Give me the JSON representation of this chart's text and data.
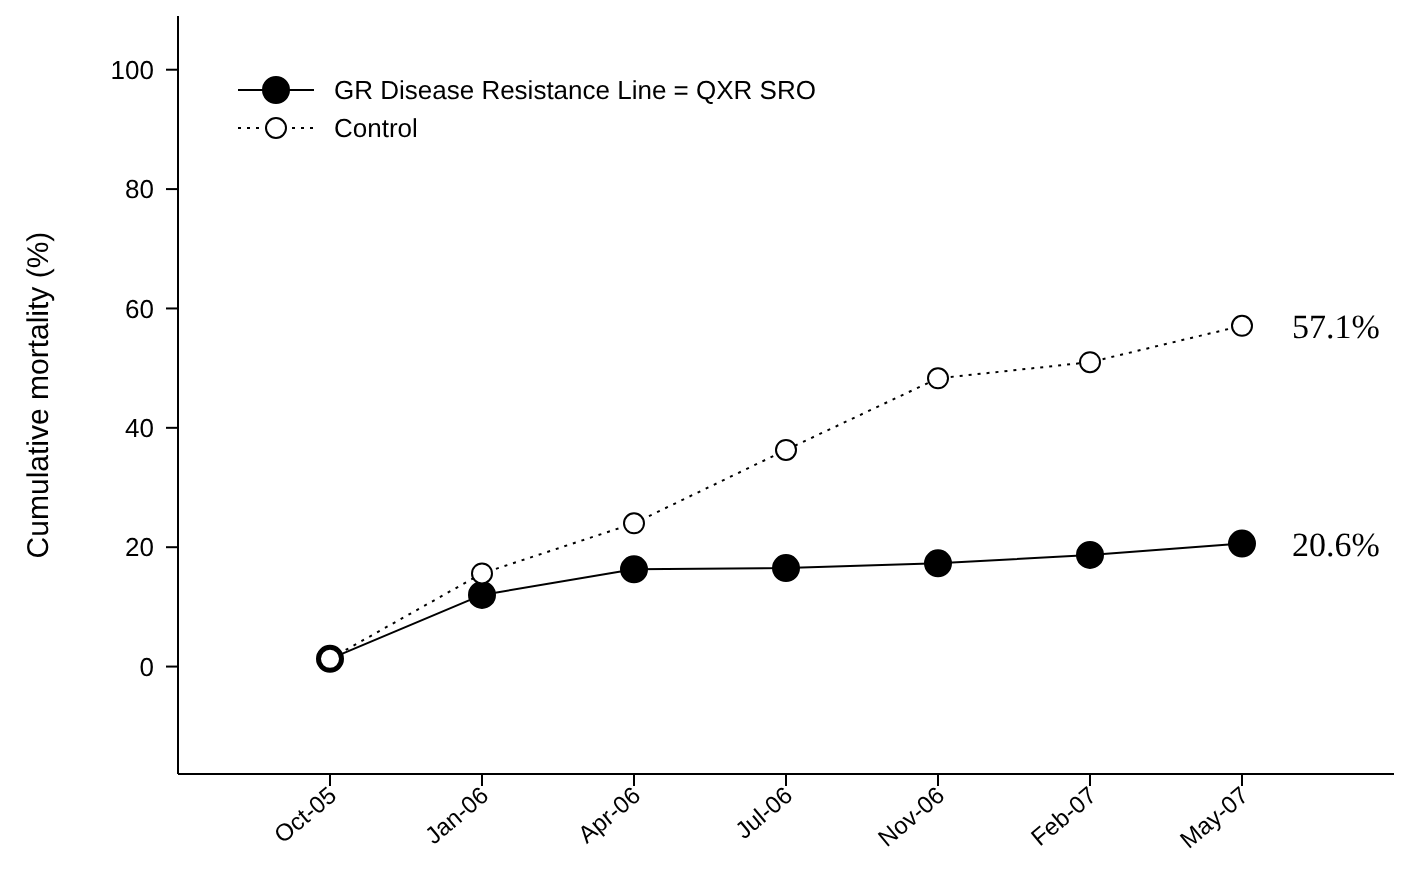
{
  "chart_data": {
    "type": "line",
    "ylabel": "Cumulative mortality (%)",
    "categories": [
      "Oct-05",
      "Jan-06",
      "Apr-06",
      "Jul-06",
      "Nov-06",
      "Feb-07",
      "May-07"
    ],
    "series": [
      {
        "name": "GR Disease Resistance Line = QXR SRO",
        "color": "#000000",
        "line_style": "solid",
        "values": [
          1.3,
          12,
          16.3,
          16.5,
          17.3,
          18.7,
          20.6
        ]
      },
      {
        "name": "Control",
        "color": "#000000",
        "line_style": "dotted",
        "values": [
          1.3,
          15.6,
          24,
          36.3,
          48.3,
          51,
          57.1
        ]
      }
    ],
    "ylim": [
      -18,
      109
    ],
    "yticks": [
      0,
      20,
      40,
      60,
      80,
      100
    ],
    "grid": false,
    "legend": "top left",
    "marker": "circle",
    "annotations": [
      {
        "text": "57.1%",
        "x": "May-07",
        "y": 57.1
      },
      {
        "text": "20.6%",
        "x": "May-07",
        "y": 20.6
      }
    ]
  }
}
